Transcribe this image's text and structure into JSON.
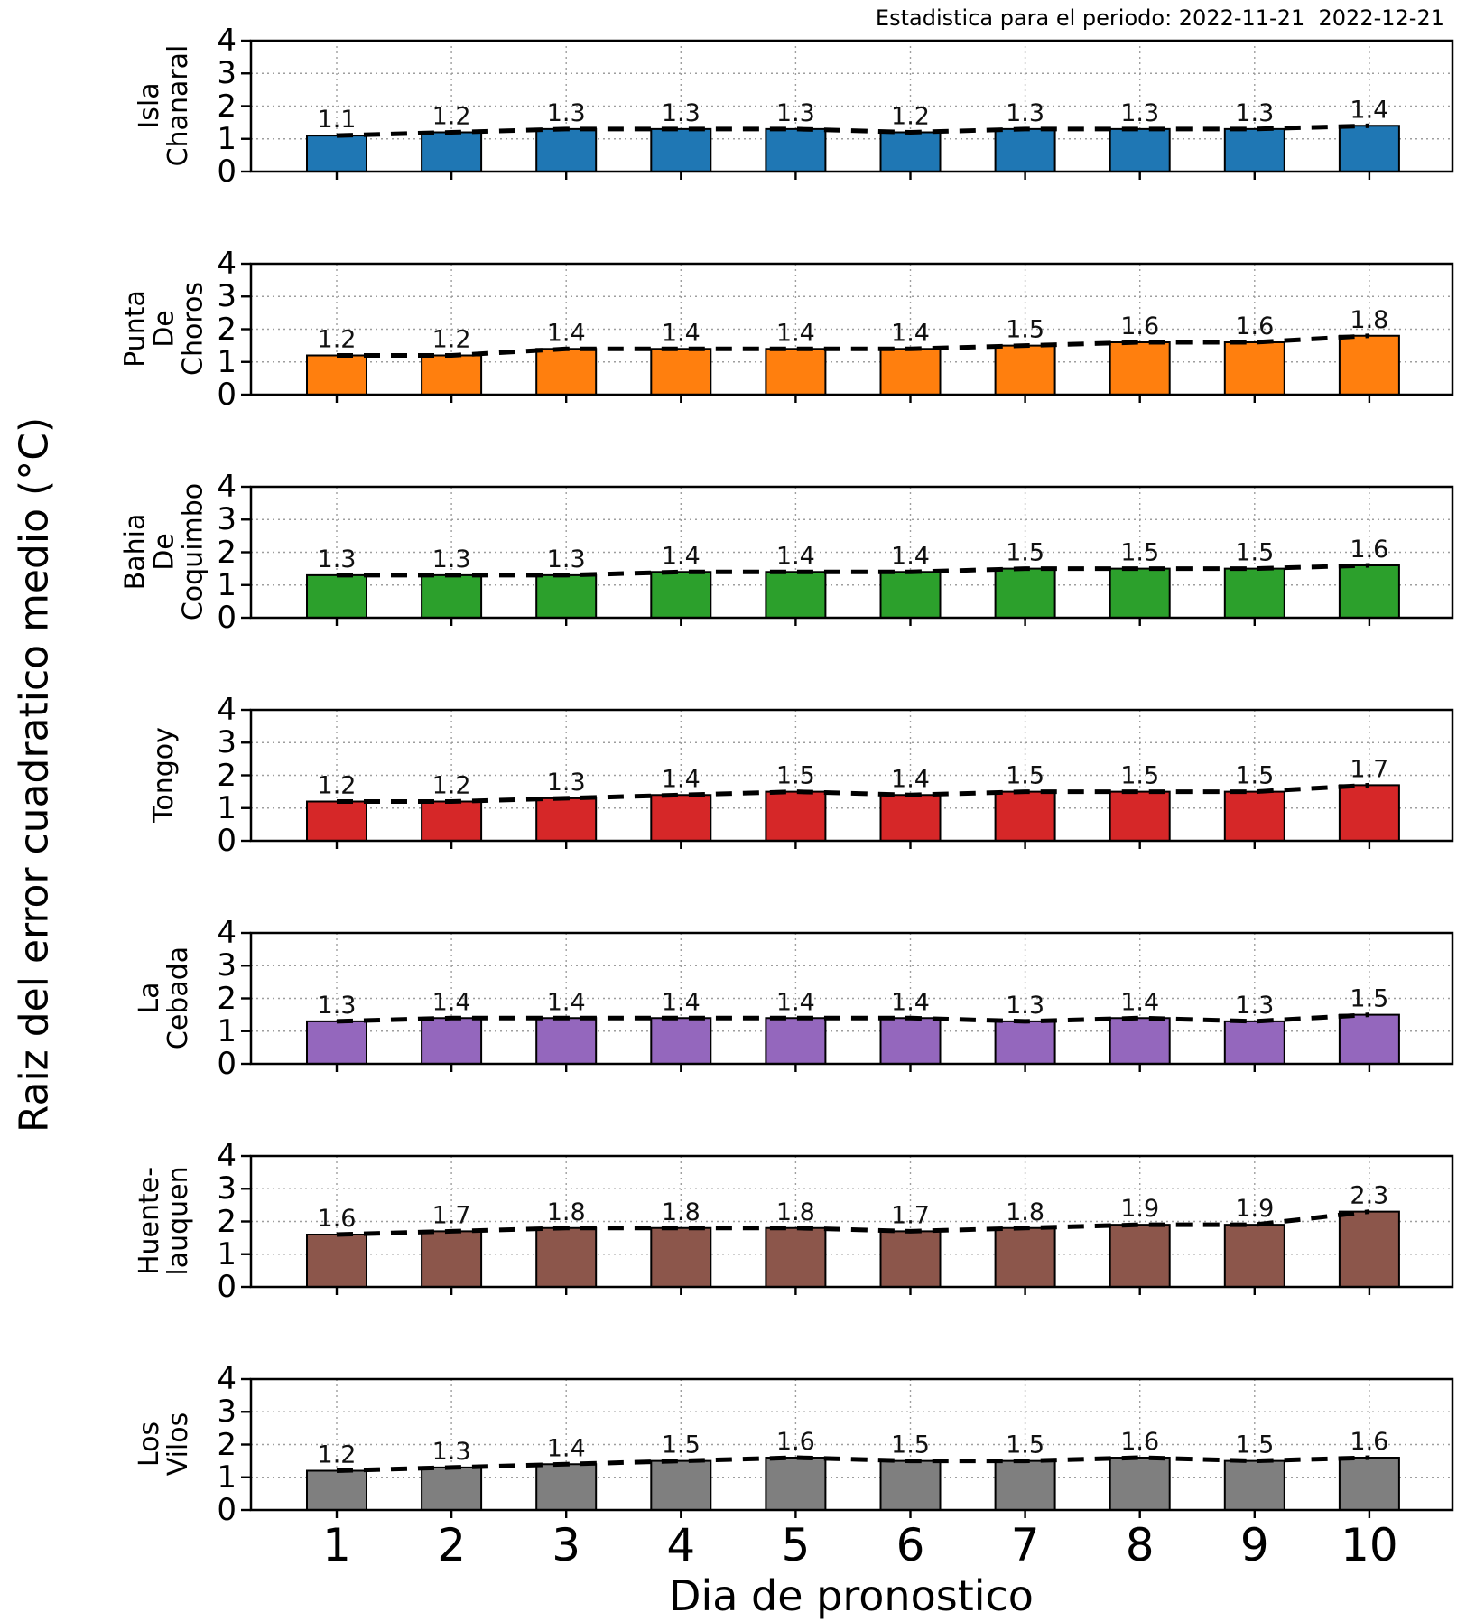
{
  "figure": {
    "title": "Estadistica para el periodo: 2022-11-21  2022-12-21",
    "xlabel": "Dia de pronostico",
    "ylabel": "Raiz del error cuadratico medio (°C)"
  },
  "chart_data": {
    "type": "bar",
    "layout": "7 vertically stacked subplots sharing the x axis",
    "title": "Estadistica para el periodo: 2022-11-21  2022-12-21",
    "xlabel": "Dia de pronostico",
    "ylabel": "Raiz del error cuadratico medio (°C)",
    "x": [
      1,
      2,
      3,
      4,
      5,
      6,
      7,
      8,
      9,
      10
    ],
    "x_ticklabels": [
      "1",
      "2",
      "3",
      "4",
      "5",
      "6",
      "7",
      "8",
      "9",
      "10"
    ],
    "ylim": [
      0,
      4
    ],
    "yticks": [
      0,
      1,
      2,
      3,
      4
    ],
    "grid": "dotted gray grid at each day and at y=1,2,3",
    "overlay": "black dashed line tracing the same values as the bars",
    "subplots": [
      {
        "name": "Isla Chanaral",
        "label_lines": [
          "Isla",
          "Chanaral"
        ],
        "color": "#1f77b4",
        "values": [
          1.1,
          1.2,
          1.3,
          1.3,
          1.3,
          1.2,
          1.3,
          1.3,
          1.3,
          1.4
        ]
      },
      {
        "name": "Punta De Choros",
        "label_lines": [
          "Punta",
          "De",
          "Choros"
        ],
        "color": "#ff7f0e",
        "values": [
          1.2,
          1.2,
          1.4,
          1.4,
          1.4,
          1.4,
          1.5,
          1.6,
          1.6,
          1.8
        ]
      },
      {
        "name": "Bahia De Coquimbo",
        "label_lines": [
          "Bahia",
          "De",
          "Coquimbo"
        ],
        "color": "#2ca02c",
        "values": [
          1.3,
          1.3,
          1.3,
          1.4,
          1.4,
          1.4,
          1.5,
          1.5,
          1.5,
          1.6
        ]
      },
      {
        "name": "Tongoy",
        "label_lines": [
          "Tongoy"
        ],
        "color": "#d62728",
        "values": [
          1.2,
          1.2,
          1.3,
          1.4,
          1.5,
          1.4,
          1.5,
          1.5,
          1.5,
          1.7
        ]
      },
      {
        "name": "La Cebada",
        "label_lines": [
          "La",
          "Cebada"
        ],
        "color": "#9467bd",
        "values": [
          1.3,
          1.4,
          1.4,
          1.4,
          1.4,
          1.4,
          1.3,
          1.4,
          1.3,
          1.5
        ]
      },
      {
        "name": "Huente-lauquen",
        "label_lines": [
          "Huente-",
          "lauquen"
        ],
        "color": "#8c564b",
        "values": [
          1.6,
          1.7,
          1.8,
          1.8,
          1.8,
          1.7,
          1.8,
          1.9,
          1.9,
          2.3
        ]
      },
      {
        "name": "Los Vilos",
        "label_lines": [
          "Los",
          "Vilos"
        ],
        "color": "#7f7f7f",
        "values": [
          1.2,
          1.3,
          1.4,
          1.5,
          1.6,
          1.5,
          1.5,
          1.6,
          1.5,
          1.6
        ]
      }
    ]
  }
}
